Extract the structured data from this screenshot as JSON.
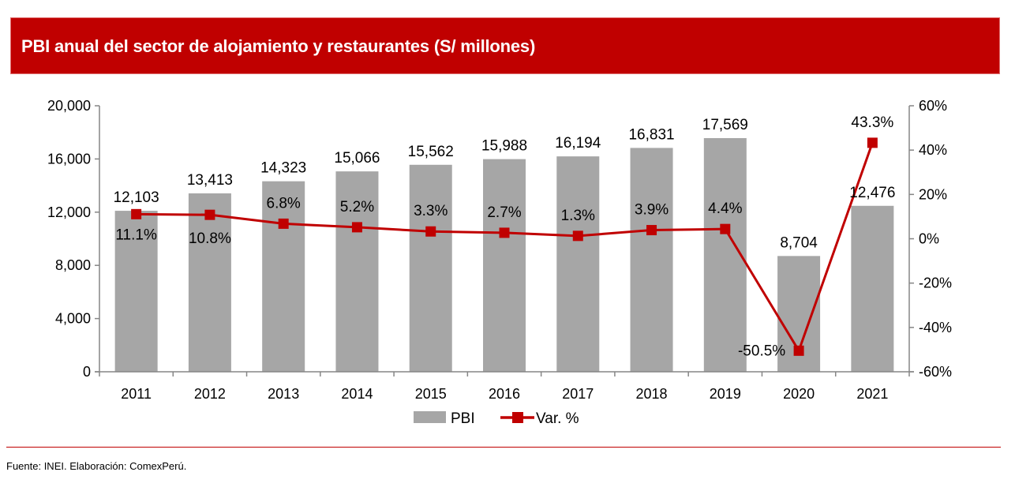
{
  "header": {
    "title": "PBI anual del sector de alojamiento y restaurantes (S/ millones)"
  },
  "footer": {
    "source": "Fuente: INEI. Elaboración: ComexPerú."
  },
  "colors": {
    "header_bg": "#C00000",
    "bar": "#A6A6A6",
    "line": "#C00000",
    "axis": "#868686",
    "divider": "#C00000"
  },
  "chart_data": {
    "type": "bar",
    "title": "PBI anual del sector de alojamiento y restaurantes (S/ millones)",
    "xlabel": "",
    "ylabel": "",
    "categories": [
      "2011",
      "2012",
      "2013",
      "2014",
      "2015",
      "2016",
      "2017",
      "2018",
      "2019",
      "2020",
      "2021"
    ],
    "series": [
      {
        "name": "PBI",
        "type": "bar",
        "axis": "left",
        "values": [
          12103,
          13413,
          14323,
          15066,
          15562,
          15988,
          16194,
          16831,
          17569,
          8704,
          12476
        ],
        "labels": [
          "12,103",
          "13,413",
          "14,323",
          "15,066",
          "15,562",
          "15,988",
          "16,194",
          "16,831",
          "17,569",
          "8,704",
          "12,476"
        ]
      },
      {
        "name": "Var. %",
        "type": "line",
        "axis": "right",
        "values": [
          11.1,
          10.8,
          6.8,
          5.2,
          3.3,
          2.7,
          1.3,
          3.9,
          4.4,
          -50.5,
          43.3
        ],
        "labels": [
          "11.1%",
          "10.8%",
          "6.8%",
          "5.2%",
          "3.3%",
          "2.7%",
          "1.3%",
          "3.9%",
          "4.4%",
          "-50.5%",
          "43.3%"
        ]
      }
    ],
    "ylim": [
      0,
      20000
    ],
    "y2lim": [
      -60,
      60
    ],
    "yticks": [
      "0",
      "4,000",
      "8,000",
      "12,000",
      "16,000",
      "20,000"
    ],
    "ytick_values": [
      0,
      4000,
      8000,
      12000,
      16000,
      20000
    ],
    "y2ticks": [
      "-60%",
      "-40%",
      "-20%",
      "0%",
      "20%",
      "40%",
      "60%"
    ],
    "y2tick_values": [
      -60,
      -40,
      -20,
      0,
      20,
      40,
      60
    ],
    "grid": false,
    "legend": {
      "position": "bottom",
      "entries": [
        "PBI",
        "Var. %"
      ]
    }
  }
}
